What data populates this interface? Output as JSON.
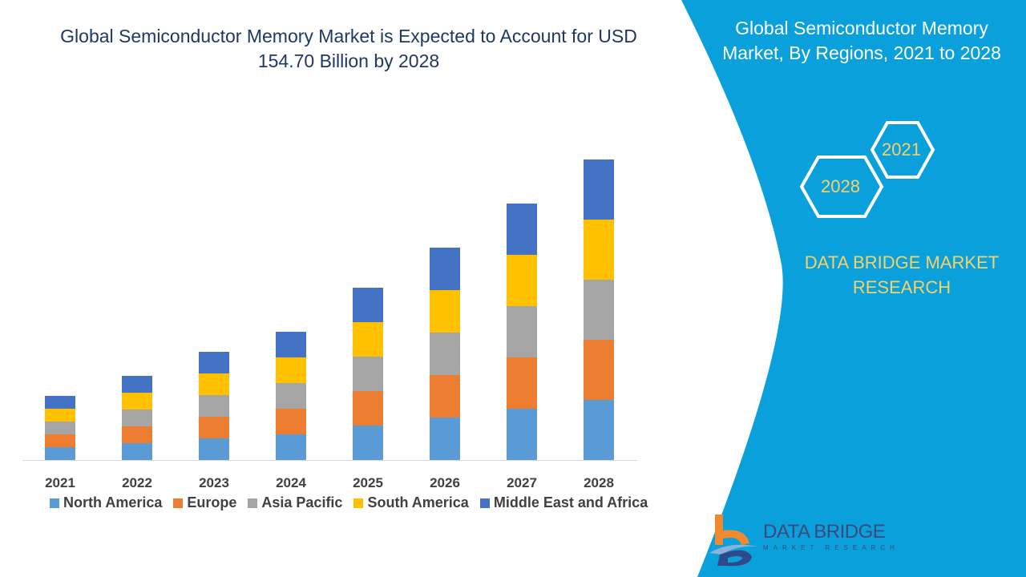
{
  "title": "Global Semiconductor Memory Market is Expected to Account for USD 154.70 Billion by 2028",
  "side_panel": {
    "title": "Global Semiconductor Memory Market, By Regions, 2021 to 2028",
    "hex_labels": [
      "2021",
      "2028"
    ],
    "brand": "DATA BRIDGE MARKET RESEARCH",
    "logo_text": "DATA BRIDGE",
    "logo_subtext": "MARKET RESEARCH",
    "panel_color": "#0aa0dc",
    "accent_color": "#f5d26a"
  },
  "chart_data": {
    "type": "bar",
    "stacked": true,
    "title": "Global Semiconductor Memory Market is Expected to Account for USD 154.70 Billion by 2028",
    "categories": [
      "2021",
      "2022",
      "2023",
      "2024",
      "2025",
      "2026",
      "2027",
      "2028"
    ],
    "series": [
      {
        "name": "North America",
        "color": "#5b9bd5",
        "values": [
          16,
          21,
          27,
          32,
          43,
          53,
          64,
          75
        ]
      },
      {
        "name": "Europe",
        "color": "#ed7d31",
        "values": [
          16,
          21,
          27,
          32,
          43,
          53,
          64,
          75
        ]
      },
      {
        "name": "Asia Pacific",
        "color": "#a5a5a5",
        "values": [
          16,
          21,
          27,
          32,
          43,
          53,
          64,
          75
        ]
      },
      {
        "name": "South America",
        "color": "#ffc000",
        "values": [
          16,
          21,
          27,
          32,
          43,
          53,
          64,
          75
        ]
      },
      {
        "name": "Middle East and Africa",
        "color": "#4472c4",
        "values": [
          16,
          21,
          27,
          32,
          43,
          53,
          64,
          75
        ]
      }
    ],
    "y_axis_visible": false,
    "grid": false,
    "legend_position": "bottom"
  }
}
